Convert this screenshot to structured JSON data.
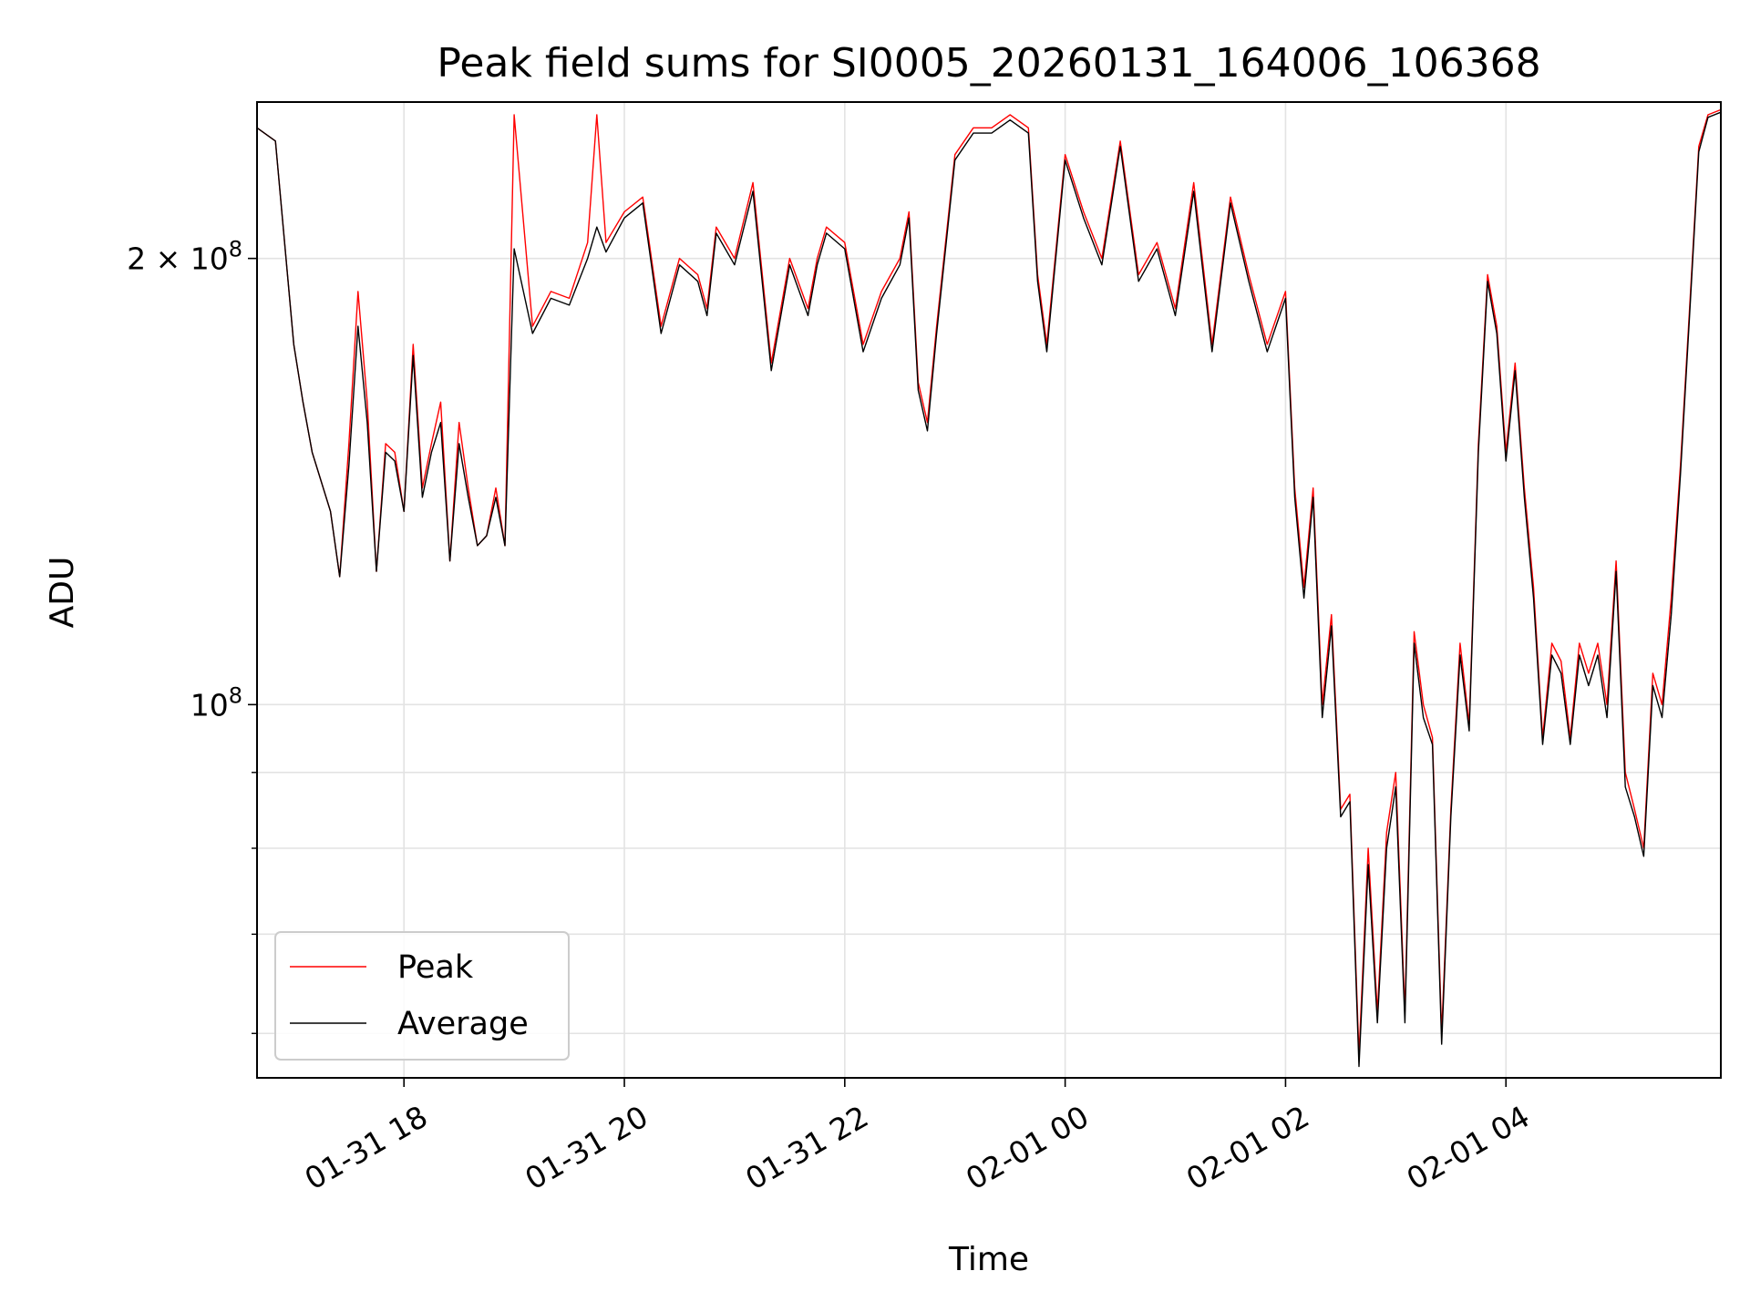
{
  "chart_data": {
    "type": "line",
    "title": "Peak field sums for SI0005_20260131_164006_106368",
    "xlabel": "Time",
    "ylabel": "ADU",
    "yscale": "log",
    "ylim": [
      56000000,
      255000000
    ],
    "xlim": [
      "2026-01-31 16:40",
      "2026-02-01 05:57"
    ],
    "grid": true,
    "legend": "lower-left",
    "x_ticks": [
      "01-31 18",
      "01-31 20",
      "01-31 22",
      "02-01 00",
      "02-01 02",
      "02-01 04"
    ],
    "y_ticks": [
      {
        "value": 200000000,
        "label_main": "2 × 10",
        "label_exp": "8"
      },
      {
        "value": 100000000,
        "label_main": "10",
        "label_exp": "8"
      }
    ],
    "x": [
      "2026-01-31 16:40",
      "2026-01-31 16:50",
      "2026-01-31 17:00",
      "2026-01-31 17:05",
      "2026-01-31 17:10",
      "2026-01-31 17:20",
      "2026-01-31 17:25",
      "2026-01-31 17:30",
      "2026-01-31 17:35",
      "2026-01-31 17:40",
      "2026-01-31 17:45",
      "2026-01-31 17:50",
      "2026-01-31 17:55",
      "2026-01-31 18:00",
      "2026-01-31 18:05",
      "2026-01-31 18:10",
      "2026-01-31 18:15",
      "2026-01-31 18:20",
      "2026-01-31 18:25",
      "2026-01-31 18:30",
      "2026-01-31 18:35",
      "2026-01-31 18:40",
      "2026-01-31 18:45",
      "2026-01-31 18:50",
      "2026-01-31 18:55",
      "2026-01-31 19:00",
      "2026-01-31 19:10",
      "2026-01-31 19:20",
      "2026-01-31 19:30",
      "2026-01-31 19:40",
      "2026-01-31 19:45",
      "2026-01-31 19:50",
      "2026-01-31 20:00",
      "2026-01-31 20:10",
      "2026-01-31 20:20",
      "2026-01-31 20:30",
      "2026-01-31 20:40",
      "2026-01-31 20:45",
      "2026-01-31 20:50",
      "2026-01-31 21:00",
      "2026-01-31 21:10",
      "2026-01-31 21:20",
      "2026-01-31 21:30",
      "2026-01-31 21:40",
      "2026-01-31 21:45",
      "2026-01-31 21:50",
      "2026-01-31 22:00",
      "2026-01-31 22:10",
      "2026-01-31 22:20",
      "2026-01-31 22:30",
      "2026-01-31 22:35",
      "2026-01-31 22:40",
      "2026-01-31 22:45",
      "2026-01-31 22:50",
      "2026-01-31 23:00",
      "2026-01-31 23:10",
      "2026-01-31 23:20",
      "2026-01-31 23:30",
      "2026-01-31 23:40",
      "2026-01-31 23:45",
      "2026-01-31 23:50",
      "2026-02-01 00:00",
      "2026-02-01 00:10",
      "2026-02-01 00:20",
      "2026-02-01 00:30",
      "2026-02-01 00:40",
      "2026-02-01 00:50",
      "2026-02-01 01:00",
      "2026-02-01 01:10",
      "2026-02-01 01:20",
      "2026-02-01 01:30",
      "2026-02-01 01:40",
      "2026-02-01 01:50",
      "2026-02-01 02:00",
      "2026-02-01 02:05",
      "2026-02-01 02:10",
      "2026-02-01 02:15",
      "2026-02-01 02:20",
      "2026-02-01 02:25",
      "2026-02-01 02:30",
      "2026-02-01 02:35",
      "2026-02-01 02:40",
      "2026-02-01 02:45",
      "2026-02-01 02:50",
      "2026-02-01 02:55",
      "2026-02-01 03:00",
      "2026-02-01 03:05",
      "2026-02-01 03:10",
      "2026-02-01 03:15",
      "2026-02-01 03:20",
      "2026-02-01 03:25",
      "2026-02-01 03:30",
      "2026-02-01 03:35",
      "2026-02-01 03:40",
      "2026-02-01 03:45",
      "2026-02-01 03:50",
      "2026-02-01 03:55",
      "2026-02-01 04:00",
      "2026-02-01 04:05",
      "2026-02-01 04:10",
      "2026-02-01 04:15",
      "2026-02-01 04:20",
      "2026-02-01 04:25",
      "2026-02-01 04:30",
      "2026-02-01 04:35",
      "2026-02-01 04:40",
      "2026-02-01 04:45",
      "2026-02-01 04:50",
      "2026-02-01 04:55",
      "2026-02-01 05:00",
      "2026-02-01 05:05",
      "2026-02-01 05:10",
      "2026-02-01 05:15",
      "2026-02-01 05:20",
      "2026-02-01 05:25",
      "2026-02-01 05:30",
      "2026-02-01 05:35",
      "2026-02-01 05:40",
      "2026-02-01 05:45",
      "2026-02-01 05:50",
      "2026-02-01 05:57"
    ],
    "series": [
      {
        "name": "Peak",
        "color": "#ff0000",
        "values": [
          245000000,
          240000000,
          175000000,
          160000000,
          148000000,
          135000000,
          122000000,
          150000000,
          190000000,
          160000000,
          123000000,
          150000000,
          148000000,
          135000000,
          175000000,
          140000000,
          150000000,
          160000000,
          125000000,
          155000000,
          140000000,
          128000000,
          130000000,
          140000000,
          128000000,
          250000000,
          180000000,
          190000000,
          188000000,
          205000000,
          250000000,
          205000000,
          215000000,
          220000000,
          180000000,
          200000000,
          195000000,
          185000000,
          210000000,
          200000000,
          225000000,
          170000000,
          200000000,
          185000000,
          200000000,
          210000000,
          205000000,
          175000000,
          190000000,
          200000000,
          215000000,
          165000000,
          155000000,
          180000000,
          235000000,
          245000000,
          245000000,
          250000000,
          245000000,
          195000000,
          175000000,
          235000000,
          215000000,
          200000000,
          240000000,
          195000000,
          205000000,
          185000000,
          225000000,
          175000000,
          220000000,
          195000000,
          175000000,
          190000000,
          140000000,
          120000000,
          140000000,
          100000000,
          115000000,
          85000000,
          87000000,
          58000000,
          80000000,
          62000000,
          82000000,
          90000000,
          62000000,
          112000000,
          100000000,
          95000000,
          60000000,
          85000000,
          110000000,
          97000000,
          150000000,
          195000000,
          180000000,
          148000000,
          170000000,
          140000000,
          120000000,
          95000000,
          110000000,
          107000000,
          95000000,
          110000000,
          105000000,
          110000000,
          100000000,
          125000000,
          90000000,
          85000000,
          80000000,
          105000000,
          100000000,
          118000000,
          145000000,
          185000000,
          238000000,
          250000000,
          252000000
        ]
      },
      {
        "name": "Average",
        "color": "#000000",
        "values": [
          245000000,
          240000000,
          175000000,
          160000000,
          148000000,
          135000000,
          122000000,
          145000000,
          180000000,
          155000000,
          123000000,
          148000000,
          146000000,
          135000000,
          172000000,
          138000000,
          148000000,
          155000000,
          125000000,
          150000000,
          138000000,
          128000000,
          130000000,
          138000000,
          128000000,
          203000000,
          178000000,
          188000000,
          186000000,
          200000000,
          210000000,
          202000000,
          213000000,
          218000000,
          178000000,
          198000000,
          193000000,
          183000000,
          208000000,
          198000000,
          222000000,
          168000000,
          198000000,
          183000000,
          198000000,
          208000000,
          203000000,
          173000000,
          188000000,
          198000000,
          213000000,
          163000000,
          153000000,
          178000000,
          233000000,
          243000000,
          243000000,
          248000000,
          243000000,
          193000000,
          173000000,
          233000000,
          213000000,
          198000000,
          238000000,
          193000000,
          203000000,
          183000000,
          222000000,
          173000000,
          218000000,
          193000000,
          173000000,
          188000000,
          138000000,
          118000000,
          138000000,
          98000000,
          113000000,
          84000000,
          86000000,
          57000000,
          78000000,
          61000000,
          80000000,
          88000000,
          61000000,
          110000000,
          98000000,
          94000000,
          59000000,
          84000000,
          108000000,
          96000000,
          148000000,
          193000000,
          178000000,
          146000000,
          168000000,
          138000000,
          118000000,
          94000000,
          108000000,
          105000000,
          94000000,
          108000000,
          103000000,
          108000000,
          98000000,
          123000000,
          88000000,
          84000000,
          79000000,
          103000000,
          98000000,
          115000000,
          143000000,
          183000000,
          236000000,
          249000000,
          251000000
        ]
      }
    ]
  }
}
